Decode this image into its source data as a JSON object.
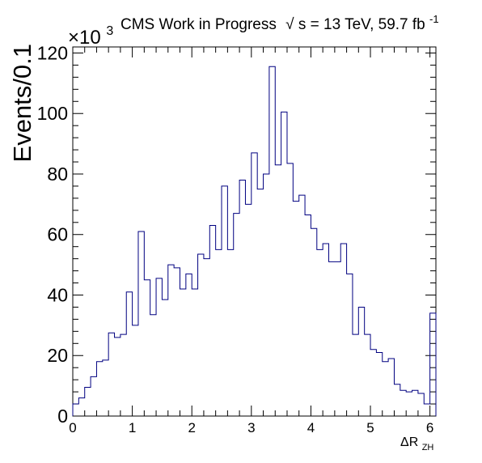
{
  "chart_data": {
    "type": "histogram",
    "title_prefix": "CMS Work in Progress",
    "title_energy": "s",
    "title_suffix": " = 13 TeV, 59.7 fb",
    "title_sup": "-1",
    "ylabel": "Events/0.1",
    "xlabel_main": "ΔR",
    "xlabel_sub": "ZH",
    "y_multiplier_base": "×10",
    "y_multiplier_exp": "3",
    "xlim": [
      0,
      6.1
    ],
    "ylim": [
      0,
      122
    ],
    "bin_width": 0.1,
    "x_ticks": [
      0,
      1,
      2,
      3,
      4,
      5,
      6
    ],
    "y_ticks": [
      0,
      20,
      40,
      60,
      80,
      100,
      120
    ],
    "line_color": "#000080",
    "values": [
      4,
      6,
      9.5,
      13,
      18,
      18.5,
      27.5,
      26,
      27,
      41,
      30,
      61,
      45,
      33.5,
      45.5,
      38.5,
      50,
      49,
      42,
      47,
      42,
      53.5,
      52,
      63,
      55,
      76,
      55,
      67,
      78,
      70,
      87,
      75,
      80,
      115.5,
      83,
      100.5,
      83.5,
      71,
      73,
      66.5,
      62,
      55,
      57,
      51,
      51,
      57,
      47,
      27,
      36,
      27,
      22,
      21,
      18,
      19,
      10.5,
      8.5,
      8,
      8.5,
      7.5,
      4,
      34
    ]
  }
}
